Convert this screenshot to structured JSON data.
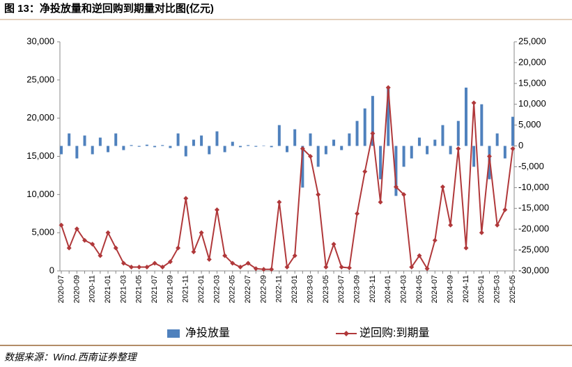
{
  "chart_data": {
    "type": "combo",
    "title": "图 13：净投放量和逆回购到期量对比图(亿元)",
    "source": "数据来源：Wind.西南证券整理",
    "categories": [
      "2020-07",
      null,
      "2020-09",
      null,
      "2020-11",
      null,
      "2021-01",
      null,
      "2021-03",
      null,
      "2021-05",
      null,
      "2021-07",
      null,
      "2021-09",
      null,
      "2021-11",
      null,
      "2022-01",
      null,
      "2022-03",
      null,
      "2022-05",
      null,
      "2022-07",
      null,
      "2022-09",
      null,
      "2022-11",
      null,
      "2023-01",
      null,
      "2023-03",
      null,
      "2023-05",
      null,
      "2023-07",
      null,
      "2023-09",
      null,
      "2023-11",
      null,
      "2024-01",
      null,
      "2024-03",
      null,
      "2024-05",
      null,
      "2024-07",
      null,
      "2024-09",
      null,
      "2024-11",
      null,
      "2025-01",
      null,
      "2025-03",
      null,
      "2025-05"
    ],
    "series": [
      {
        "name": "净投放量",
        "type": "bar",
        "axis": "y2",
        "color": "#4f81bd",
        "values": [
          -2000,
          3000,
          -3000,
          2500,
          -2000,
          2000,
          -1500,
          3000,
          -1000,
          200,
          -200,
          300,
          -300,
          200,
          -500,
          3000,
          -2500,
          1500,
          2500,
          -2000,
          3500,
          -1500,
          1000,
          -300,
          200,
          -200,
          100,
          -300,
          5000,
          -1500,
          4000,
          -10000,
          3000,
          -5000,
          -2000,
          1500,
          -1000,
          3000,
          6000,
          9000,
          12000,
          -8000,
          14000,
          -12000,
          -5000,
          -3000,
          2000,
          -2000,
          1500,
          5000,
          -2000,
          6000,
          14000,
          -5000,
          10000,
          -8000,
          3000,
          -3000,
          7000
        ]
      },
      {
        "name": "逆回购:到期量",
        "type": "line",
        "color": "#b0383a",
        "values": [
          6000,
          3000,
          5500,
          4000,
          3500,
          2000,
          5000,
          3000,
          1000,
          500,
          500,
          500,
          1000,
          500,
          1200,
          3000,
          9500,
          2500,
          5000,
          1500,
          8000,
          2000,
          1000,
          500,
          1000,
          300,
          200,
          200,
          9000,
          500,
          2000,
          16000,
          15000,
          10000,
          500,
          3500,
          500,
          400,
          7500,
          13000,
          18000,
          9000,
          24000,
          11000,
          10000,
          500,
          2000,
          300,
          4000,
          11000,
          6000,
          16000,
          3000,
          22000,
          5000,
          15000,
          6000,
          8000,
          16000
        ]
      }
    ],
    "ylim": [
      0,
      30000
    ],
    "yticks": [
      0,
      {
        "value": 5000,
        "label": "5,000"
      },
      {
        "value": 10000,
        "label": "10,000"
      },
      {
        "value": 15000,
        "label": "15,000"
      },
      {
        "value": 20000,
        "label": "20,000"
      },
      {
        "value": 25000,
        "label": "25,000"
      },
      {
        "value": 30000,
        "label": "30,000"
      }
    ],
    "y2lim": [
      -30000,
      25000
    ],
    "y2ticks": [
      {
        "value": -30000,
        "label": "-30,000"
      },
      {
        "value": -25000,
        "label": "-25,000"
      },
      {
        "value": -20000,
        "label": "-20,000"
      },
      {
        "value": -15000,
        "label": "-15,000"
      },
      {
        "value": -10000,
        "label": "-10,000"
      },
      {
        "value": -5000,
        "label": "-5,000"
      },
      0,
      {
        "value": 5000,
        "label": "5,000"
      },
      {
        "value": 10000,
        "label": "10,000"
      },
      {
        "value": 15000,
        "label": "15,000"
      },
      {
        "value": 20000,
        "label": "20,000"
      },
      {
        "value": 25000,
        "label": "25,000"
      }
    ],
    "grid": false,
    "legend": "bottom"
  }
}
